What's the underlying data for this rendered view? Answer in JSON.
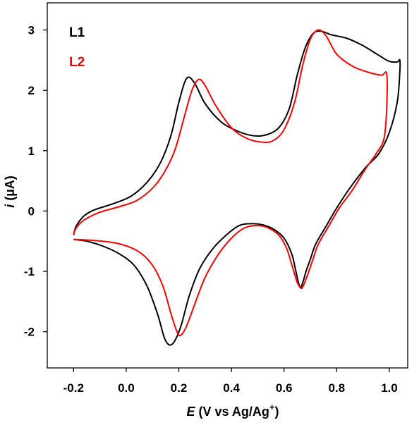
{
  "chart_data": {
    "type": "line",
    "xlabel": {
      "italic": "E",
      "text": " (V vs Ag/Ag",
      "sup": "+",
      "close": ")"
    },
    "ylabel": {
      "italic": "i",
      "text": " (µA)"
    },
    "xlim": [
      -0.3,
      1.07
    ],
    "ylim": [
      -2.6,
      3.45
    ],
    "xticks": [
      -0.2,
      0.0,
      0.2,
      0.4,
      0.6,
      0.8,
      1.0
    ],
    "xtick_labels": [
      "-0.2",
      "0.0",
      "0.2",
      "0.4",
      "0.6",
      "0.8",
      "1.0"
    ],
    "yticks": [
      -2,
      -1,
      0,
      1,
      2,
      3
    ],
    "ytick_labels": [
      "-2",
      "-1",
      "0",
      "1",
      "2",
      "3"
    ],
    "legend_position": "top-left",
    "colors": {
      "L1": "#000000",
      "L2": "#ff0000"
    },
    "series": [
      {
        "name": "L1",
        "color": "#000000",
        "x": [
          -0.2,
          -0.19,
          -0.16,
          -0.12,
          -0.05,
          0.02,
          0.08,
          0.13,
          0.17,
          0.2,
          0.23,
          0.26,
          0.3,
          0.36,
          0.42,
          0.48,
          0.53,
          0.58,
          0.62,
          0.65,
          0.68,
          0.71,
          0.74,
          0.78,
          0.84,
          0.9,
          0.96,
          1.0,
          1.03,
          1.04,
          1.04,
          1.03,
          1.0,
          0.96,
          0.91,
          0.85,
          0.8,
          0.76,
          0.72,
          0.7,
          0.685,
          0.67,
          0.66,
          0.645,
          0.63,
          0.6,
          0.56,
          0.52,
          0.48,
          0.43,
          0.38,
          0.33,
          0.28,
          0.24,
          0.21,
          0.185,
          0.165,
          0.145,
          0.12,
          0.08,
          0.03,
          -0.03,
          -0.09,
          -0.15,
          -0.2
        ],
        "y": [
          -0.4,
          -0.25,
          -0.08,
          0.02,
          0.12,
          0.25,
          0.48,
          0.8,
          1.25,
          1.8,
          2.2,
          2.12,
          1.78,
          1.48,
          1.33,
          1.25,
          1.26,
          1.38,
          1.7,
          2.25,
          2.7,
          2.94,
          2.98,
          2.92,
          2.86,
          2.74,
          2.58,
          2.48,
          2.47,
          2.5,
          2.3,
          1.8,
          1.3,
          0.95,
          0.72,
          0.38,
          0.05,
          -0.25,
          -0.55,
          -0.8,
          -0.98,
          -1.2,
          -1.26,
          -1.0,
          -0.72,
          -0.45,
          -0.3,
          -0.23,
          -0.21,
          -0.24,
          -0.4,
          -0.62,
          -0.95,
          -1.4,
          -1.88,
          -2.15,
          -2.22,
          -2.1,
          -1.72,
          -1.25,
          -0.9,
          -0.7,
          -0.58,
          -0.5,
          -0.47
        ]
      },
      {
        "name": "L2",
        "color": "#ff0000",
        "x": [
          -0.2,
          -0.19,
          -0.16,
          -0.1,
          -0.02,
          0.05,
          0.12,
          0.18,
          0.22,
          0.25,
          0.275,
          0.3,
          0.34,
          0.4,
          0.46,
          0.52,
          0.56,
          0.6,
          0.64,
          0.67,
          0.7,
          0.73,
          0.76,
          0.8,
          0.86,
          0.92,
          0.97,
          0.99,
          0.99,
          0.98,
          0.95,
          0.91,
          0.86,
          0.81,
          0.77,
          0.73,
          0.71,
          0.69,
          0.675,
          0.665,
          0.65,
          0.63,
          0.61,
          0.58,
          0.54,
          0.5,
          0.45,
          0.4,
          0.35,
          0.3,
          0.26,
          0.23,
          0.21,
          0.195,
          0.17,
          0.14,
          0.1,
          0.05,
          -0.02,
          -0.09,
          -0.15,
          -0.2
        ],
        "y": [
          -0.4,
          -0.28,
          -0.15,
          -0.02,
          0.08,
          0.2,
          0.48,
          0.95,
          1.55,
          2.0,
          2.18,
          2.08,
          1.75,
          1.38,
          1.2,
          1.14,
          1.17,
          1.35,
          1.8,
          2.4,
          2.85,
          3.0,
          2.9,
          2.6,
          2.4,
          2.3,
          2.25,
          2.27,
          1.7,
          1.2,
          0.95,
          0.7,
          0.35,
          0.05,
          -0.25,
          -0.55,
          -0.8,
          -1.05,
          -1.22,
          -1.28,
          -1.18,
          -0.9,
          -0.62,
          -0.4,
          -0.28,
          -0.24,
          -0.28,
          -0.45,
          -0.72,
          -1.1,
          -1.55,
          -1.9,
          -2.05,
          -2.02,
          -1.7,
          -1.25,
          -0.9,
          -0.68,
          -0.55,
          -0.5,
          -0.48,
          -0.47
        ]
      }
    ]
  }
}
